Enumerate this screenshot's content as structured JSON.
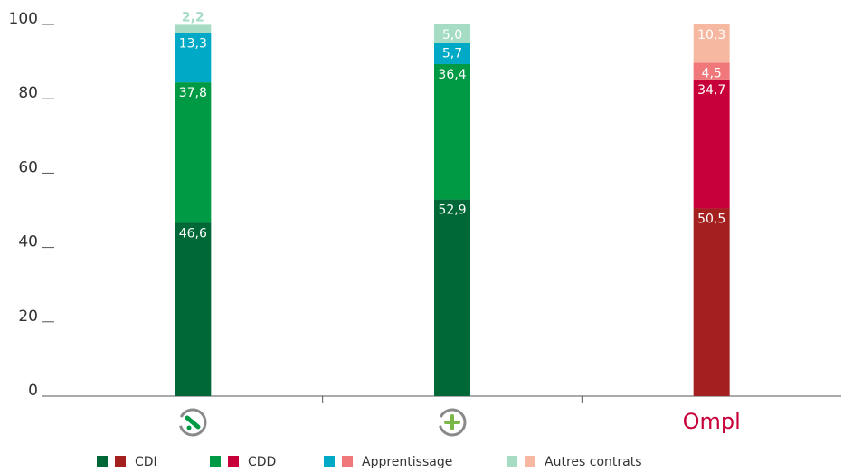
{
  "chart_data": {
    "type": "stacked-bar",
    "categories": [
      null,
      null,
      "Ompl"
    ],
    "series": [
      {
        "name": "CDI",
        "colors": [
          "#006837",
          "#006837",
          "#a3201f"
        ],
        "values": [
          46.6,
          52.9,
          50.5
        ],
        "value_labels": [
          "46,6",
          "52,9",
          "50,5"
        ]
      },
      {
        "name": "CDD",
        "colors": [
          "#009a44",
          "#009a44",
          "#c8003a"
        ],
        "values": [
          37.8,
          36.4,
          34.7
        ],
        "value_labels": [
          "37,8",
          "36,4",
          "34,7"
        ]
      },
      {
        "name": "Apprentissage",
        "colors": [
          "#00a9c5",
          "#00a9c5",
          "#f0787a"
        ],
        "values": [
          13.3,
          5.7,
          4.5
        ],
        "value_labels": [
          "13,3",
          "5,7",
          "4,5"
        ]
      },
      {
        "name": "Autres contrats",
        "colors": [
          "#a6dcc4",
          "#a6dcc4",
          "#f6b8a0"
        ],
        "values": [
          2.2,
          5.0,
          10.3
        ],
        "value_labels": [
          "2,2",
          "5,0",
          "10,3"
        ]
      }
    ],
    "ylim": [
      0,
      100
    ],
    "yticks": [
      0,
      20,
      40,
      60,
      80,
      100
    ],
    "legend": "bottom"
  }
}
